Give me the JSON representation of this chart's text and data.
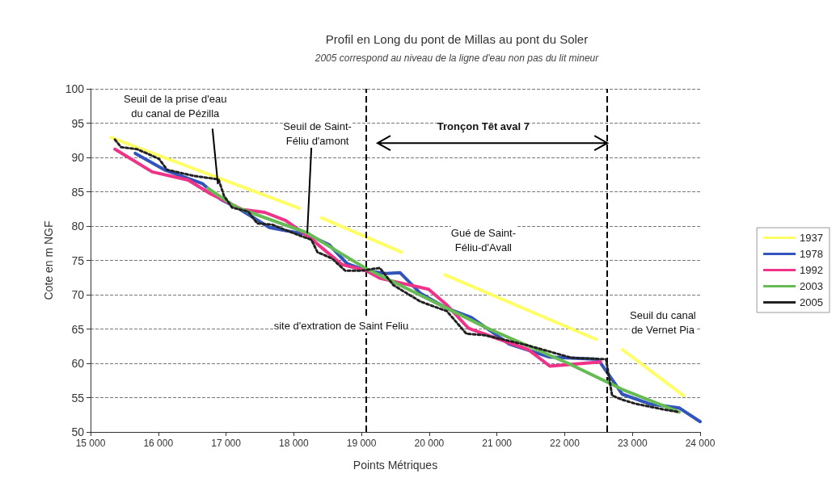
{
  "chart_data": {
    "type": "line",
    "title": "Profil en Long du pont de Millas au pont du Soler",
    "subtitle": "2005 correspond au niveau de la ligne d'eau non pas du lit mineur",
    "xlabel": "Points Métriques",
    "ylabel": "Cote en m NGF",
    "annotations": [
      {
        "text": "Seuil de la prise d'eau\ndu canal de Pézilla",
        "x": 16880,
        "y": 86.1
      },
      {
        "text": "Seuil de Saint-\nFéliu d'amont",
        "x": 18200,
        "y": 79.0
      },
      "Tronçon Têt aval 7",
      "Gué de Saint-\nFéliu-d'Avall",
      "site d'extration de Saint Feliu",
      "Seuil du canal\nde Vernet Pia"
    ],
    "series": [
      {
        "name": "1937",
        "color": "#ffff66",
        "line_style": "solid",
        "x": [
          15300,
          18080,
          18250,
          18410,
          19590,
          19900,
          20230,
          22460,
          22650,
          22850,
          23750
        ],
        "values": [
          92.9,
          82.6,
          null,
          81.2,
          76.2,
          null,
          72.9,
          63.5,
          null,
          62.0,
          55.3
        ]
      },
      {
        "name": "1978",
        "color": "#3355bb",
        "line_style": "solid",
        "x": [
          15660,
          16090,
          16650,
          16920,
          17160,
          17640,
          17840,
          18200,
          18520,
          18790,
          19070,
          19360,
          19570,
          19870,
          20260,
          20620,
          20910,
          21180,
          21780,
          22490,
          22850,
          23250,
          23690,
          24000
        ],
        "values": [
          90.6,
          88.2,
          86.2,
          83.9,
          82.7,
          79.8,
          79.4,
          78.8,
          77.3,
          74.5,
          73.5,
          73.1,
          73.2,
          70.2,
          68.0,
          66.7,
          64.7,
          62.8,
          60.9,
          60.6,
          55.5,
          54.1,
          53.5,
          51.5
        ]
      },
      {
        "name": "1992",
        "color": "#ee3388",
        "line_style": "solid",
        "x": [
          15360,
          15910,
          16440,
          16770,
          17240,
          17570,
          17880,
          18200,
          18710,
          19070,
          19270,
          19990,
          20260,
          20580,
          21460,
          21780,
          22530
        ],
        "values": [
          91.2,
          87.9,
          86.7,
          84.7,
          82.4,
          82.0,
          80.8,
          78.6,
          74.4,
          73.5,
          72.4,
          70.8,
          68.5,
          65.1,
          62.0,
          59.6,
          60.2
        ]
      },
      {
        "name": "2003",
        "color": "#66bb55",
        "line_style": "solid",
        "x": [
          16730,
          17160,
          18200,
          18680,
          19070,
          20860,
          22050,
          22850,
          23690
        ],
        "values": [
          85.5,
          82.7,
          79.0,
          76.1,
          73.8,
          65.1,
          60.0,
          56.2,
          52.9
        ]
      },
      {
        "name": "2005",
        "color": "#222222",
        "line_style": "dotted",
        "x": [
          15360,
          15450,
          15690,
          16010,
          16130,
          16530,
          16890,
          16970,
          17090,
          17330,
          17460,
          17680,
          18040,
          18260,
          18350,
          18560,
          18760,
          19000,
          19270,
          19470,
          19870,
          20260,
          20550,
          20820,
          21460,
          22100,
          22610,
          22700,
          22850,
          23050,
          23450,
          23690
        ],
        "values": [
          92.6,
          91.5,
          91.2,
          89.8,
          88.2,
          87.3,
          86.8,
          84.4,
          82.7,
          82.1,
          80.4,
          80.2,
          78.8,
          78.0,
          76.2,
          75.3,
          73.5,
          73.5,
          73.9,
          71.4,
          69.0,
          67.6,
          64.3,
          64.1,
          62.6,
          60.8,
          60.6,
          55.3,
          54.7,
          54.1,
          53.3,
          52.9
        ]
      }
    ],
    "xlim": [
      15000,
      24000
    ],
    "xticks": [
      {
        "value": 15000,
        "label": "15 000"
      },
      {
        "value": 16000,
        "label": "16 000"
      },
      {
        "value": 17000,
        "label": "17 000"
      },
      {
        "value": 18000,
        "label": "18 000"
      },
      {
        "value": 19000,
        "label": "19 000"
      },
      {
        "value": 20000,
        "label": "20 000"
      },
      {
        "value": 21000,
        "label": "21 000"
      },
      {
        "value": 22000,
        "label": "22 000"
      },
      {
        "value": 23000,
        "label": "23 000"
      },
      {
        "value": 24000,
        "label": "24 000"
      }
    ],
    "ylim": [
      50,
      100
    ],
    "yticks": [
      50,
      55,
      60,
      65,
      70,
      75,
      80,
      85,
      90,
      95,
      100
    ],
    "ref_lines": [
      {
        "axis": "x",
        "value": 19070,
        "color": "#000000",
        "line_style": "dashed"
      },
      {
        "axis": "x",
        "value": 22630,
        "color": "#000000",
        "line_style": "dashed"
      }
    ],
    "grid": "y",
    "legend": "right",
    "marker": "none"
  }
}
